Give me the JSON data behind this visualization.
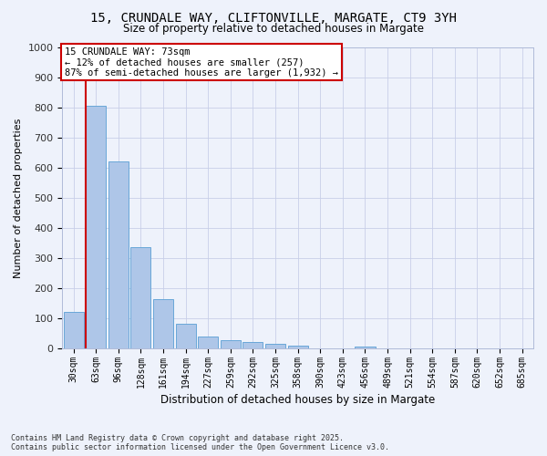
{
  "title_line1": "15, CRUNDALE WAY, CLIFTONVILLE, MARGATE, CT9 3YH",
  "title_line2": "Size of property relative to detached houses in Margate",
  "xlabel": "Distribution of detached houses by size in Margate",
  "ylabel": "Number of detached properties",
  "bar_color": "#aec6e8",
  "bar_edge_color": "#5a9fd4",
  "red_line_x": 1,
  "categories": [
    "30sqm",
    "63sqm",
    "96sqm",
    "128sqm",
    "161sqm",
    "194sqm",
    "227sqm",
    "259sqm",
    "292sqm",
    "325sqm",
    "358sqm",
    "390sqm",
    "423sqm",
    "456sqm",
    "489sqm",
    "521sqm",
    "554sqm",
    "587sqm",
    "620sqm",
    "652sqm",
    "685sqm"
  ],
  "values": [
    122,
    805,
    620,
    335,
    165,
    82,
    40,
    27,
    22,
    17,
    10,
    0,
    0,
    8,
    0,
    0,
    0,
    0,
    0,
    0,
    0
  ],
  "ylim": [
    0,
    1000
  ],
  "yticks": [
    0,
    100,
    200,
    300,
    400,
    500,
    600,
    700,
    800,
    900,
    1000
  ],
  "annotation_title": "15 CRUNDALE WAY: 73sqm",
  "annotation_line1": "← 12% of detached houses are smaller (257)",
  "annotation_line2": "87% of semi-detached houses are larger (1,932) →",
  "annotation_box_color": "#ffffff",
  "annotation_box_edge": "#cc0000",
  "red_line_color": "#cc0000",
  "footer_line1": "Contains HM Land Registry data © Crown copyright and database right 2025.",
  "footer_line2": "Contains public sector information licensed under the Open Government Licence v3.0.",
  "background_color": "#eef2fb",
  "plot_background": "#eef2fb",
  "grid_color": "#c8cfe8"
}
